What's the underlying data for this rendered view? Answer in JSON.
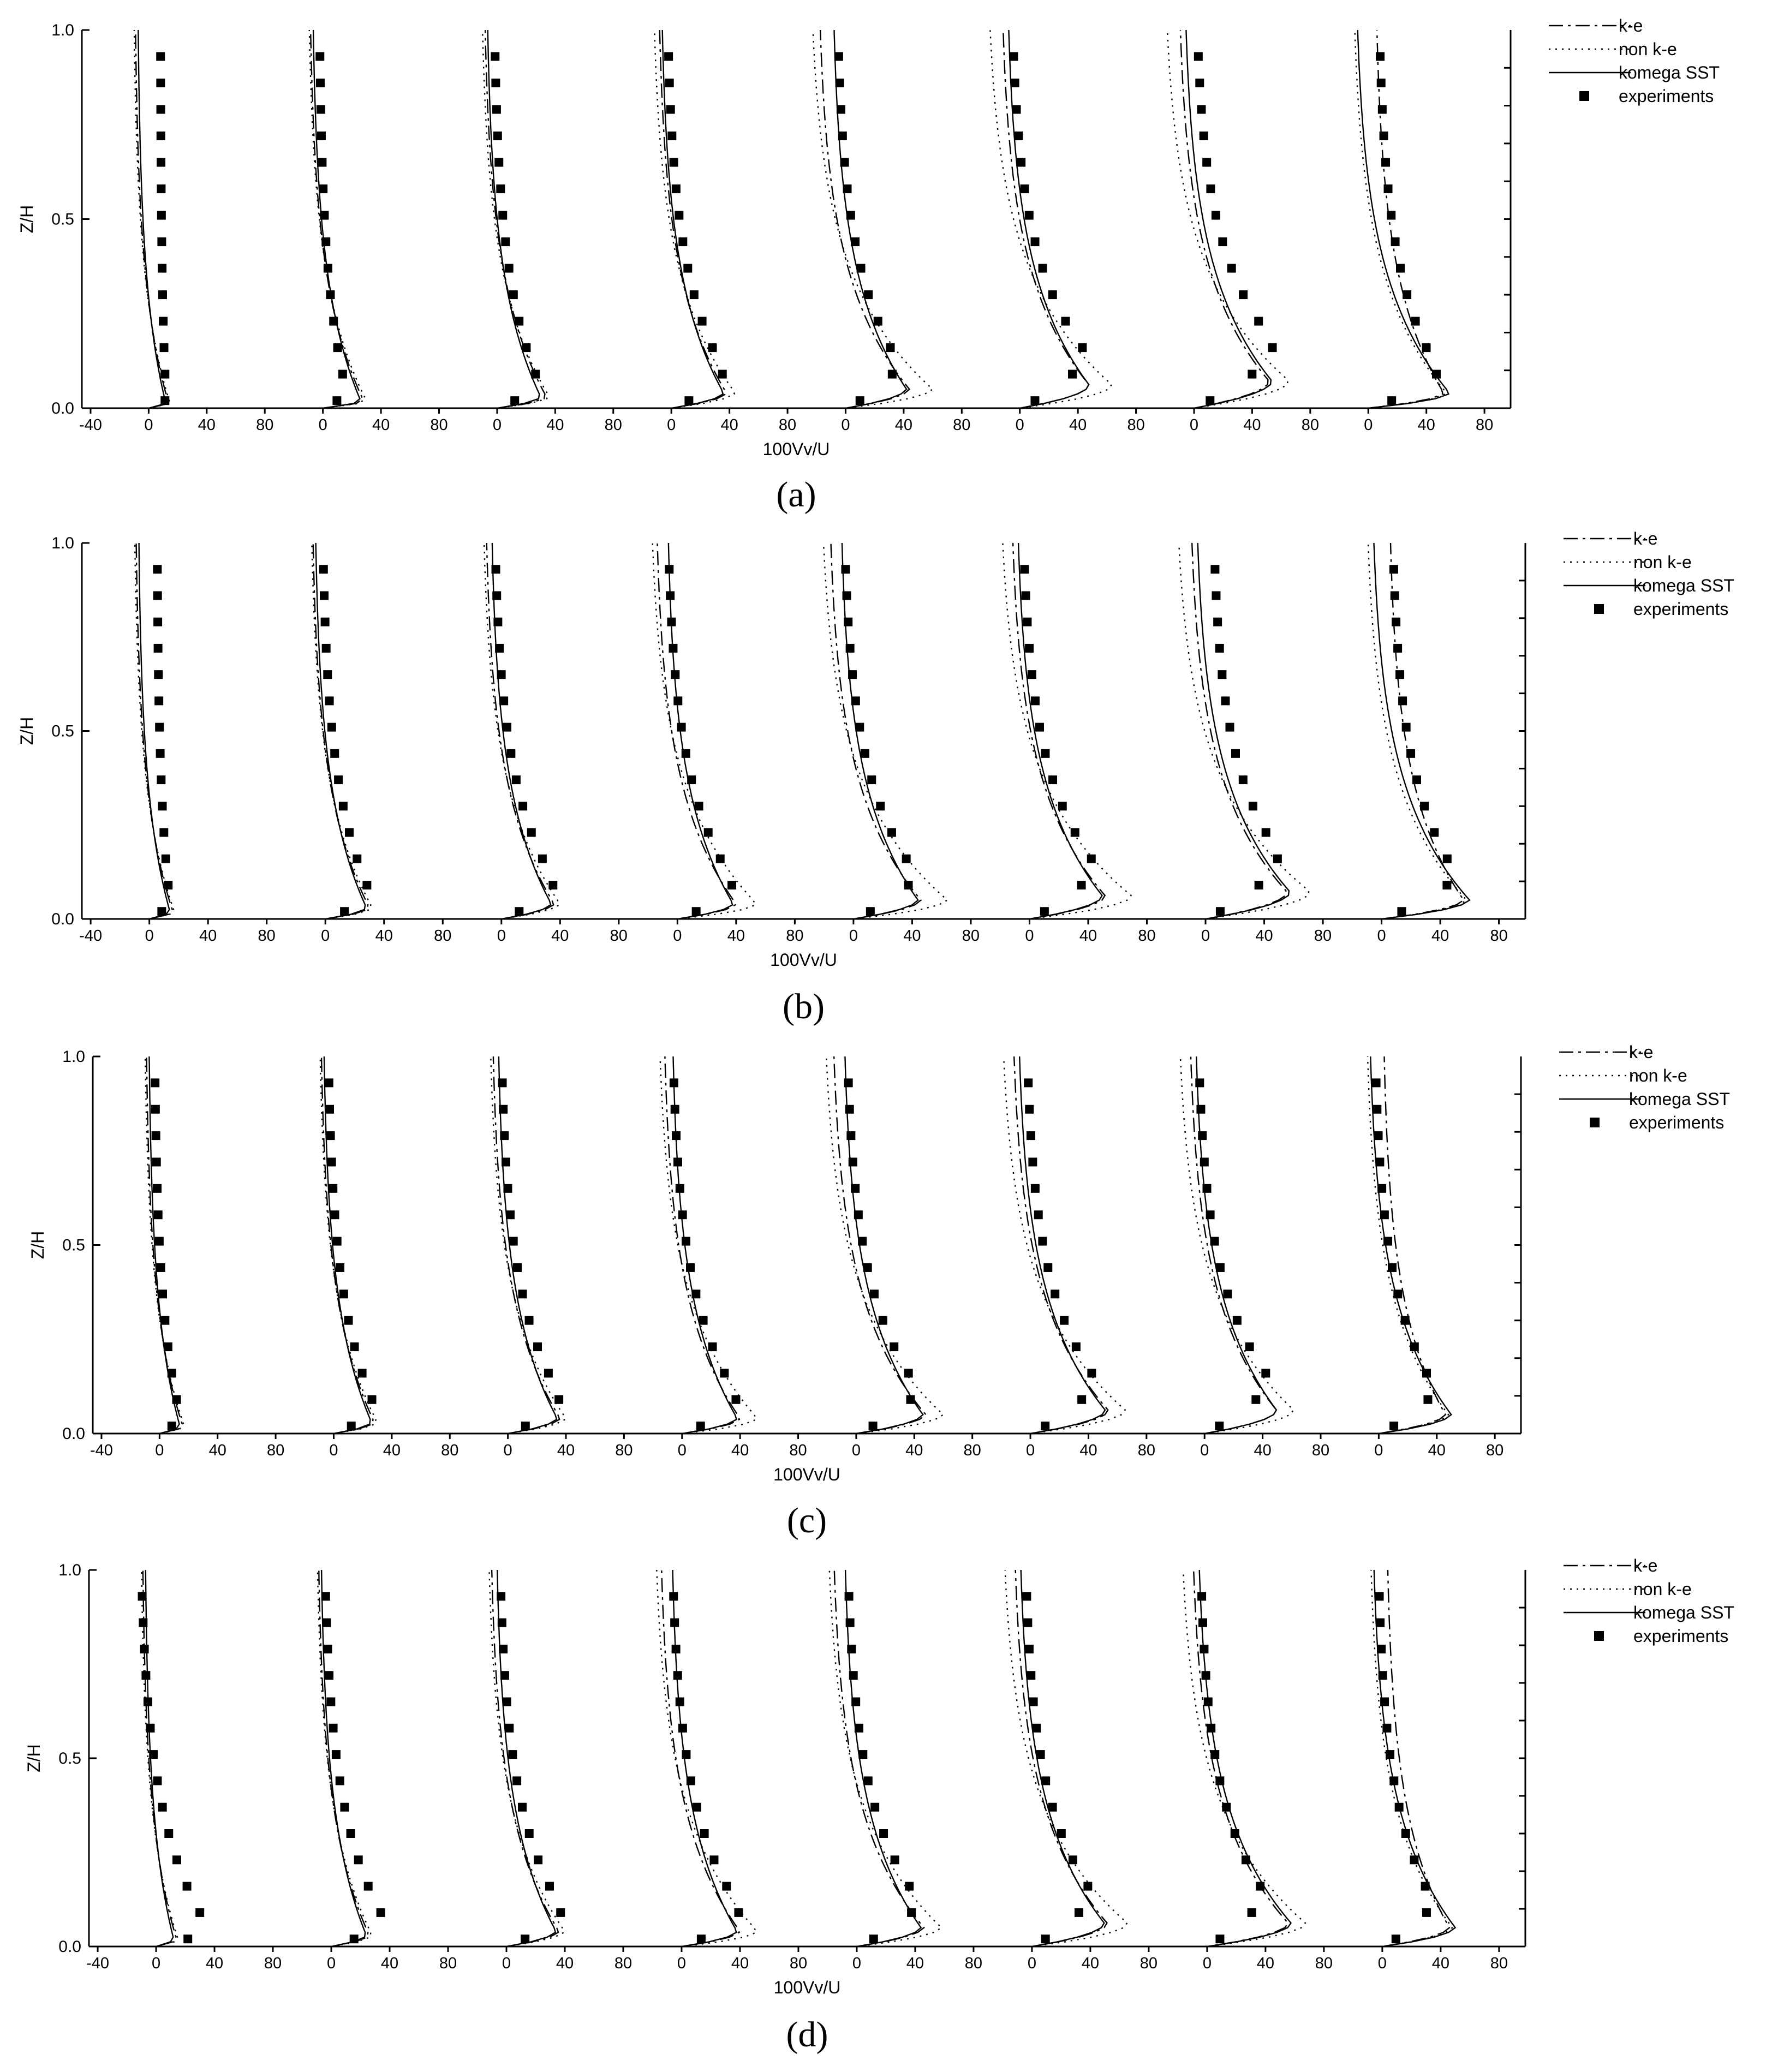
{
  "figure": {
    "x_axis_label": "100Vv/U",
    "y_axis_label": "Z/H",
    "x_tick_labels": [
      "-40",
      "0",
      "40",
      "80",
      "0",
      "40",
      "80",
      "0",
      "40",
      "80",
      "0",
      "40",
      "80",
      "0",
      "40",
      "80",
      "0",
      "40",
      "80",
      "0",
      "40",
      "80",
      "0",
      "40",
      "80"
    ],
    "y_tick_labels": [
      "0.0",
      "0.5",
      "1.0"
    ],
    "panel_labels": [
      "(a)",
      "(b)",
      "(c)",
      "(d)"
    ],
    "legend_entries": [
      "k-e",
      "non k-e",
      "komega SST",
      "experiments"
    ]
  },
  "chart_data": [
    {
      "type": "line",
      "panel": "(a)",
      "xlabel": "100Vv/U",
      "ylabel": "Z/H",
      "ylim": [
        0,
        1
      ],
      "xlim": [
        -40,
        80
      ],
      "grid": false,
      "legend_position": "top-right, outside plot area",
      "subplots": 8,
      "subplot_x_tick_labels": [
        "-40",
        "0",
        "40",
        "80"
      ],
      "series": [
        {
          "name": "k-e",
          "style": "dash-dot"
        },
        {
          "name": "non k-e",
          "style": "dotted"
        },
        {
          "name": "komega SST",
          "style": "solid"
        },
        {
          "name": "experiments",
          "style": "square markers"
        }
      ],
      "profiles": [
        {
          "peak_z": 0.01,
          "ke": 14,
          "nke": 15,
          "sst": 12,
          "top_ke": -10,
          "top_nke": -11,
          "top_sst": -8,
          "exp_near_wall": 12,
          "exp_top": 8
        },
        {
          "peak_z": 0.02,
          "ke": 28,
          "nke": 30,
          "sst": 26,
          "top_ke": -10,
          "top_nke": -11,
          "top_sst": -8,
          "exp_near_wall": 16,
          "exp_top": -3
        },
        {
          "peak_z": 0.03,
          "ke": 34,
          "nke": 36,
          "sst": 30,
          "top_ke": -10,
          "top_nke": -12,
          "top_sst": -8,
          "exp_near_wall": 28,
          "exp_top": -3
        },
        {
          "peak_z": 0.04,
          "ke": 38,
          "nke": 44,
          "sst": 36,
          "top_ke": -10,
          "top_nke": -14,
          "top_sst": -8,
          "exp_near_wall": 36,
          "exp_top": -4
        },
        {
          "peak_z": 0.05,
          "ke": 44,
          "nke": 60,
          "sst": 42,
          "top_ke": -20,
          "top_nke": -26,
          "top_sst": -10,
          "exp_near_wall": 36,
          "exp_top": -7
        },
        {
          "peak_z": 0.06,
          "ke": 48,
          "nke": 64,
          "sst": 48,
          "top_ke": -14,
          "top_nke": -24,
          "top_sst": -10,
          "exp_near_wall": 45,
          "exp_top": -7
        },
        {
          "peak_z": 0.07,
          "ke": 52,
          "nke": 66,
          "sst": 54,
          "top_ke": -12,
          "top_nke": -22,
          "top_sst": -8,
          "exp_near_wall": 55,
          "exp_top": 0
        },
        {
          "peak_z": 0.04,
          "ke": 52,
          "nke": 54,
          "sst": 56,
          "top_ke": 4,
          "top_nke": -12,
          "top_sst": -10,
          "exp_near_wall": 48,
          "exp_top": 6
        }
      ]
    },
    {
      "type": "line",
      "panel": "(b)",
      "xlabel": "100Vv/U",
      "ylabel": "Z/H",
      "ylim": [
        0,
        1
      ],
      "xlim": [
        -40,
        80
      ],
      "grid": false,
      "legend_position": "top-right, outside plot area",
      "subplots": 8,
      "subplot_x_tick_labels": [
        "-40",
        "0",
        "40",
        "80"
      ],
      "series": [
        {
          "name": "k-e",
          "style": "dash-dot"
        },
        {
          "name": "non k-e",
          "style": "dotted"
        },
        {
          "name": "komega SST",
          "style": "solid"
        },
        {
          "name": "experiments",
          "style": "square markers"
        }
      ],
      "profiles": [
        {
          "peak_z": 0.02,
          "ke": 16,
          "nke": 17,
          "sst": 14,
          "top_ke": -10,
          "top_nke": -11,
          "top_sst": -8,
          "exp_near_wall": 14,
          "exp_top": 5
        },
        {
          "peak_z": 0.03,
          "ke": 30,
          "nke": 32,
          "sst": 28,
          "top_ke": -10,
          "top_nke": -11,
          "top_sst": -8,
          "exp_near_wall": 30,
          "exp_top": -3
        },
        {
          "peak_z": 0.04,
          "ke": 36,
          "nke": 40,
          "sst": 34,
          "top_ke": -12,
          "top_nke": -14,
          "top_sst": -8,
          "exp_near_wall": 36,
          "exp_top": -6
        },
        {
          "peak_z": 0.04,
          "ke": 40,
          "nke": 54,
          "sst": 38,
          "top_ke": -16,
          "top_nke": -20,
          "top_sst": -8,
          "exp_near_wall": 38,
          "exp_top": -8
        },
        {
          "peak_z": 0.05,
          "ke": 46,
          "nke": 64,
          "sst": 44,
          "top_ke": -18,
          "top_nke": -24,
          "top_sst": -10,
          "exp_near_wall": 42,
          "exp_top": -8
        },
        {
          "peak_z": 0.06,
          "ke": 52,
          "nke": 70,
          "sst": 50,
          "top_ke": -14,
          "top_nke": -22,
          "top_sst": -10,
          "exp_near_wall": 44,
          "exp_top": -6
        },
        {
          "peak_z": 0.07,
          "ke": 56,
          "nke": 72,
          "sst": 58,
          "top_ke": -12,
          "top_nke": -22,
          "top_sst": -8,
          "exp_near_wall": 50,
          "exp_top": 4
        },
        {
          "peak_z": 0.05,
          "ke": 56,
          "nke": 58,
          "sst": 60,
          "top_ke": 4,
          "top_nke": -12,
          "top_sst": -8,
          "exp_near_wall": 50,
          "exp_top": 6
        }
      ]
    },
    {
      "type": "line",
      "panel": "(c)",
      "xlabel": "100Vv/U",
      "ylabel": "Z/H",
      "ylim": [
        0,
        1
      ],
      "xlim": [
        -40,
        80
      ],
      "grid": false,
      "legend_position": "top-right, outside plot area",
      "subplots": 8,
      "subplot_x_tick_labels": [
        "-40",
        "0",
        "40",
        "80"
      ],
      "series": [
        {
          "name": "k-e",
          "style": "dash-dot"
        },
        {
          "name": "non k-e",
          "style": "dotted"
        },
        {
          "name": "komega SST",
          "style": "solid"
        },
        {
          "name": "experiments",
          "style": "square markers"
        }
      ],
      "profiles": [
        {
          "peak_z": 0.02,
          "ke": 16,
          "nke": 17,
          "sst": 14,
          "top_ke": -10,
          "top_nke": -11,
          "top_sst": -8,
          "exp_near_wall": 14,
          "exp_top": -4
        },
        {
          "peak_z": 0.03,
          "ke": 28,
          "nke": 30,
          "sst": 26,
          "top_ke": -10,
          "top_nke": -11,
          "top_sst": -8,
          "exp_near_wall": 28,
          "exp_top": -5
        },
        {
          "peak_z": 0.04,
          "ke": 36,
          "nke": 40,
          "sst": 34,
          "top_ke": -12,
          "top_nke": -14,
          "top_sst": -8,
          "exp_near_wall": 36,
          "exp_top": -6
        },
        {
          "peak_z": 0.04,
          "ke": 40,
          "nke": 52,
          "sst": 38,
          "top_ke": -14,
          "top_nke": -18,
          "top_sst": -8,
          "exp_near_wall": 38,
          "exp_top": -8
        },
        {
          "peak_z": 0.05,
          "ke": 48,
          "nke": 60,
          "sst": 46,
          "top_ke": -18,
          "top_nke": -24,
          "top_sst": -10,
          "exp_near_wall": 42,
          "exp_top": -8
        },
        {
          "peak_z": 0.06,
          "ke": 54,
          "nke": 66,
          "sst": 52,
          "top_ke": -14,
          "top_nke": -22,
          "top_sst": -10,
          "exp_near_wall": 44,
          "exp_top": -4
        },
        {
          "peak_z": 0.06,
          "ke": 50,
          "nke": 62,
          "sst": 50,
          "top_ke": -12,
          "top_nke": -20,
          "top_sst": -8,
          "exp_near_wall": 44,
          "exp_top": -6
        },
        {
          "peak_z": 0.05,
          "ke": 46,
          "nke": 48,
          "sst": 50,
          "top_ke": 2,
          "top_nke": -10,
          "top_sst": -8,
          "exp_near_wall": 38,
          "exp_top": -4
        }
      ]
    },
    {
      "type": "line",
      "panel": "(d)",
      "xlabel": "100Vv/U",
      "ylabel": "Z/H",
      "ylim": [
        0,
        1
      ],
      "xlim": [
        -40,
        80
      ],
      "grid": false,
      "legend_position": "top-right, outside plot area",
      "subplots": 8,
      "subplot_x_tick_labels": [
        "-40",
        "0",
        "40",
        "80"
      ],
      "series": [
        {
          "name": "k-e",
          "style": "dash-dot"
        },
        {
          "name": "non k-e",
          "style": "dotted"
        },
        {
          "name": "komega SST",
          "style": "solid"
        },
        {
          "name": "experiments",
          "style": "square markers"
        }
      ],
      "profiles": [
        {
          "peak_z": 0.02,
          "ke": 14,
          "nke": 15,
          "sst": 12,
          "top_ke": -10,
          "top_nke": -11,
          "top_sst": -8,
          "exp_near_wall": 36,
          "exp_top": -12
        },
        {
          "peak_z": 0.03,
          "ke": 26,
          "nke": 28,
          "sst": 24,
          "top_ke": -10,
          "top_nke": -11,
          "top_sst": -8,
          "exp_near_wall": 36,
          "exp_top": -6
        },
        {
          "peak_z": 0.04,
          "ke": 36,
          "nke": 40,
          "sst": 34,
          "top_ke": -12,
          "top_nke": -14,
          "top_sst": -8,
          "exp_near_wall": 38,
          "exp_top": -6
        },
        {
          "peak_z": 0.04,
          "ke": 40,
          "nke": 52,
          "sst": 38,
          "top_ke": -16,
          "top_nke": -20,
          "top_sst": -8,
          "exp_near_wall": 40,
          "exp_top": -8
        },
        {
          "peak_z": 0.05,
          "ke": 46,
          "nke": 58,
          "sst": 44,
          "top_ke": -18,
          "top_nke": -22,
          "top_sst": -10,
          "exp_near_wall": 42,
          "exp_top": -8
        },
        {
          "peak_z": 0.06,
          "ke": 52,
          "nke": 66,
          "sst": 50,
          "top_ke": -14,
          "top_nke": -22,
          "top_sst": -10,
          "exp_near_wall": 40,
          "exp_top": -6
        },
        {
          "peak_z": 0.06,
          "ke": 56,
          "nke": 68,
          "sst": 58,
          "top_ke": -12,
          "top_nke": -20,
          "top_sst": -8,
          "exp_near_wall": 38,
          "exp_top": -6
        },
        {
          "peak_z": 0.05,
          "ke": 46,
          "nke": 48,
          "sst": 50,
          "top_ke": 2,
          "top_nke": -10,
          "top_sst": -8,
          "exp_near_wall": 34,
          "exp_top": -4
        }
      ]
    }
  ]
}
